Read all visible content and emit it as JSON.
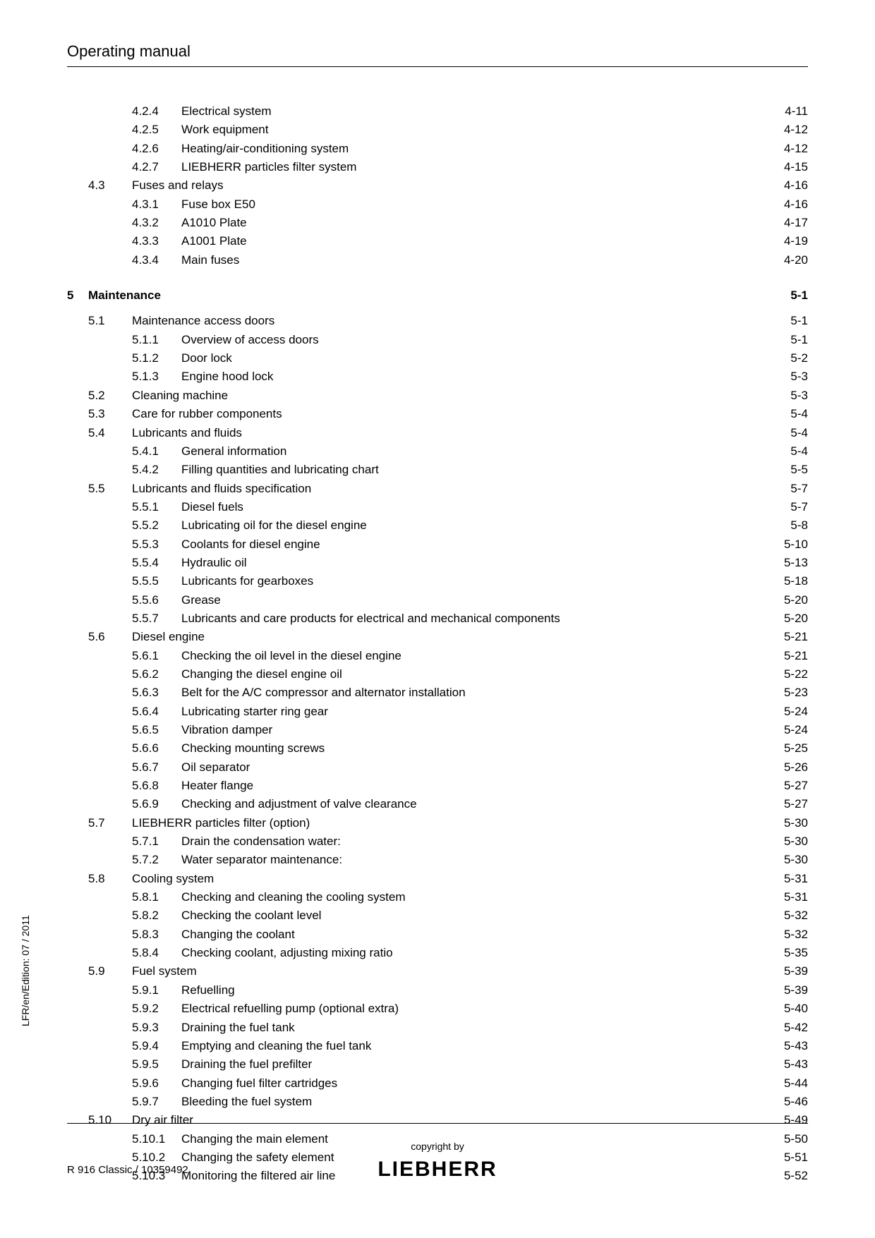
{
  "header": "Operating manual",
  "side_label": "LFR/en/Edition: 07 / 2011",
  "doc_ref": "R 916 Classic / 10359492",
  "copyright": "copyright by",
  "brand": "LIEBHERR",
  "toc": [
    {
      "level": 3,
      "num": "4.2.4",
      "title": "Electrical system",
      "page": "4-11"
    },
    {
      "level": 3,
      "num": "4.2.5",
      "title": "Work equipment",
      "page": "4-12"
    },
    {
      "level": 3,
      "num": "4.2.6",
      "title": "Heating/air-conditioning system",
      "page": "4-12"
    },
    {
      "level": 3,
      "num": "4.2.7",
      "title": "LIEBHERR particles filter system",
      "page": "4-15"
    },
    {
      "level": 2,
      "num": "4.3",
      "title": "Fuses and relays",
      "page": "4-16"
    },
    {
      "level": 3,
      "num": "4.3.1",
      "title": "Fuse box E50",
      "page": "4-16"
    },
    {
      "level": 3,
      "num": "4.3.2",
      "title": "A1010 Plate",
      "page": "4-17"
    },
    {
      "level": 3,
      "num": "4.3.3",
      "title": "A1001 Plate",
      "page": "4-19"
    },
    {
      "level": 3,
      "num": "4.3.4",
      "title": "Main fuses",
      "page": "4-20"
    },
    {
      "level": 1,
      "num": "5",
      "title": "Maintenance",
      "page": "5-1"
    },
    {
      "level": 2,
      "num": "5.1",
      "title": "Maintenance access doors",
      "page": "5-1"
    },
    {
      "level": 3,
      "num": "5.1.1",
      "title": "Overview of access doors",
      "page": "5-1"
    },
    {
      "level": 3,
      "num": "5.1.2",
      "title": "Door lock",
      "page": "5-2"
    },
    {
      "level": 3,
      "num": "5.1.3",
      "title": "Engine hood lock",
      "page": "5-3"
    },
    {
      "level": 2,
      "num": "5.2",
      "title": "Cleaning machine",
      "page": "5-3"
    },
    {
      "level": 2,
      "num": "5.3",
      "title": "Care for rubber components",
      "page": "5-4"
    },
    {
      "level": 2,
      "num": "5.4",
      "title": "Lubricants and fluids",
      "page": "5-4"
    },
    {
      "level": 3,
      "num": "5.4.1",
      "title": "General information",
      "page": "5-4"
    },
    {
      "level": 3,
      "num": "5.4.2",
      "title": "Filling quantities and lubricating chart",
      "page": "5-5"
    },
    {
      "level": 2,
      "num": "5.5",
      "title": "Lubricants and fluids specification",
      "page": "5-7"
    },
    {
      "level": 3,
      "num": "5.5.1",
      "title": "Diesel fuels",
      "page": "5-7"
    },
    {
      "level": 3,
      "num": "5.5.2",
      "title": "Lubricating oil for the diesel engine",
      "page": "5-8"
    },
    {
      "level": 3,
      "num": "5.5.3",
      "title": "Coolants for diesel engine",
      "page": "5-10"
    },
    {
      "level": 3,
      "num": "5.5.4",
      "title": "Hydraulic oil",
      "page": "5-13"
    },
    {
      "level": 3,
      "num": "5.5.5",
      "title": "Lubricants for gearboxes",
      "page": "5-18"
    },
    {
      "level": 3,
      "num": "5.5.6",
      "title": "Grease",
      "page": "5-20"
    },
    {
      "level": 3,
      "num": "5.5.7",
      "title": "Lubricants and care products for electrical and mechanical components",
      "page": "5-20"
    },
    {
      "level": 2,
      "num": "5.6",
      "title": "Diesel engine",
      "page": "5-21"
    },
    {
      "level": 3,
      "num": "5.6.1",
      "title": "Checking the oil level in the diesel engine",
      "page": "5-21"
    },
    {
      "level": 3,
      "num": "5.6.2",
      "title": "Changing the diesel engine oil",
      "page": "5-22"
    },
    {
      "level": 3,
      "num": "5.6.3",
      "title": "Belt for the A/C compressor and alternator installation",
      "page": "5-23"
    },
    {
      "level": 3,
      "num": "5.6.4",
      "title": "Lubricating starter ring gear",
      "page": "5-24"
    },
    {
      "level": 3,
      "num": "5.6.5",
      "title": "Vibration damper",
      "page": "5-24"
    },
    {
      "level": 3,
      "num": "5.6.6",
      "title": "Checking mounting screws",
      "page": "5-25"
    },
    {
      "level": 3,
      "num": "5.6.7",
      "title": "Oil separator",
      "page": "5-26"
    },
    {
      "level": 3,
      "num": "5.6.8",
      "title": "Heater flange",
      "page": "5-27"
    },
    {
      "level": 3,
      "num": "5.6.9",
      "title": "Checking and adjustment of valve clearance",
      "page": "5-27"
    },
    {
      "level": 2,
      "num": "5.7",
      "title": "LIEBHERR particles filter (option)",
      "page": "5-30"
    },
    {
      "level": 3,
      "num": "5.7.1",
      "title": "Drain the condensation water:",
      "page": "5-30"
    },
    {
      "level": 3,
      "num": "5.7.2",
      "title": "Water separator maintenance:",
      "page": "5-30"
    },
    {
      "level": 2,
      "num": "5.8",
      "title": "Cooling system",
      "page": "5-31"
    },
    {
      "level": 3,
      "num": "5.8.1",
      "title": "Checking and cleaning the cooling system",
      "page": "5-31"
    },
    {
      "level": 3,
      "num": "5.8.2",
      "title": "Checking the coolant level",
      "page": "5-32"
    },
    {
      "level": 3,
      "num": "5.8.3",
      "title": "Changing the coolant",
      "page": "5-32"
    },
    {
      "level": 3,
      "num": "5.8.4",
      "title": "Checking coolant, adjusting mixing ratio",
      "page": "5-35"
    },
    {
      "level": 2,
      "num": "5.9",
      "title": "Fuel system",
      "page": "5-39"
    },
    {
      "level": 3,
      "num": "5.9.1",
      "title": "Refuelling",
      "page": "5-39"
    },
    {
      "level": 3,
      "num": "5.9.2",
      "title": "Electrical refuelling pump (optional extra)",
      "page": "5-40"
    },
    {
      "level": 3,
      "num": "5.9.3",
      "title": "Draining the fuel tank",
      "page": "5-42"
    },
    {
      "level": 3,
      "num": "5.9.4",
      "title": "Emptying and cleaning the fuel tank",
      "page": "5-43"
    },
    {
      "level": 3,
      "num": "5.9.5",
      "title": "Draining the fuel prefilter",
      "page": "5-43"
    },
    {
      "level": 3,
      "num": "5.9.6",
      "title": "Changing fuel filter cartridges",
      "page": "5-44"
    },
    {
      "level": 3,
      "num": "5.9.7",
      "title": "Bleeding the fuel system",
      "page": "5-46"
    },
    {
      "level": 2,
      "num": "5.10",
      "title": "Dry air filter",
      "page": "5-49"
    },
    {
      "level": 3,
      "num": "5.10.1",
      "title": "Changing the main element",
      "page": "5-50"
    },
    {
      "level": 3,
      "num": "5.10.2",
      "title": "Changing the safety element",
      "page": "5-51"
    },
    {
      "level": 3,
      "num": "5.10.3",
      "title": "Monitoring the filtered air line",
      "page": "5-52"
    }
  ]
}
